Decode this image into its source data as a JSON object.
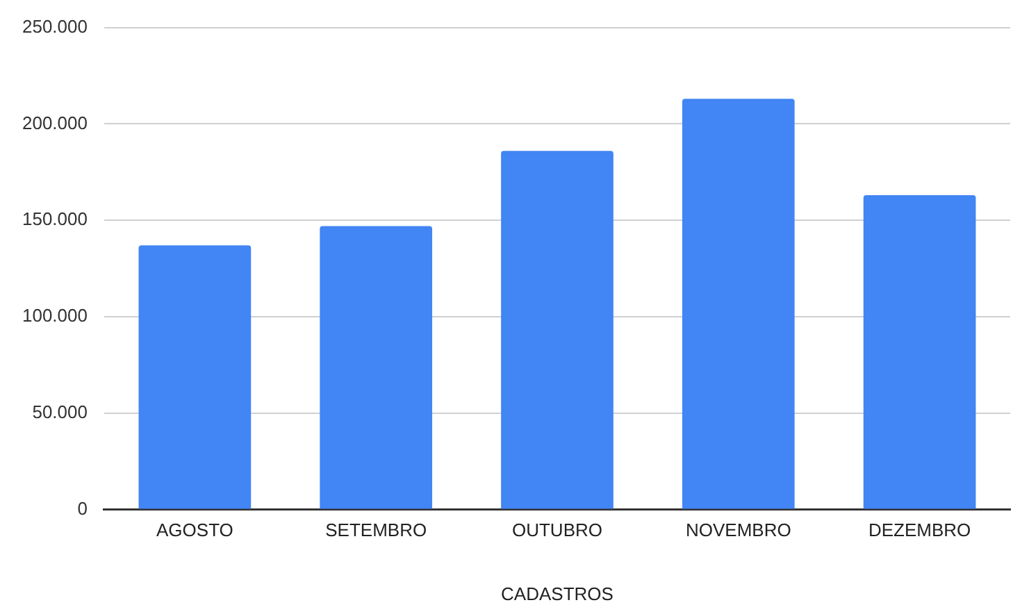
{
  "chart_data": {
    "type": "bar",
    "xlabel": "CADASTROS",
    "categories": [
      "AGOSTO",
      "SETEMBRO",
      "OUTUBRO",
      "NOVEMBRO",
      "DEZEMBRO"
    ],
    "series": [
      {
        "color": "#4285f4",
        "values": [
          137000,
          147000,
          186000,
          213000,
          163000
        ]
      }
    ],
    "ylim": [
      0,
      250000
    ],
    "yticks": [
      0,
      {
        "value": 50000,
        "label": "50.000"
      },
      {
        "value": 100000,
        "label": "100.000"
      },
      {
        "value": 150000,
        "label": "150.000"
      },
      {
        "value": 200000,
        "label": "200.000"
      },
      {
        "value": 250000,
        "label": "250.000"
      }
    ],
    "grid": "y",
    "legend": false
  }
}
